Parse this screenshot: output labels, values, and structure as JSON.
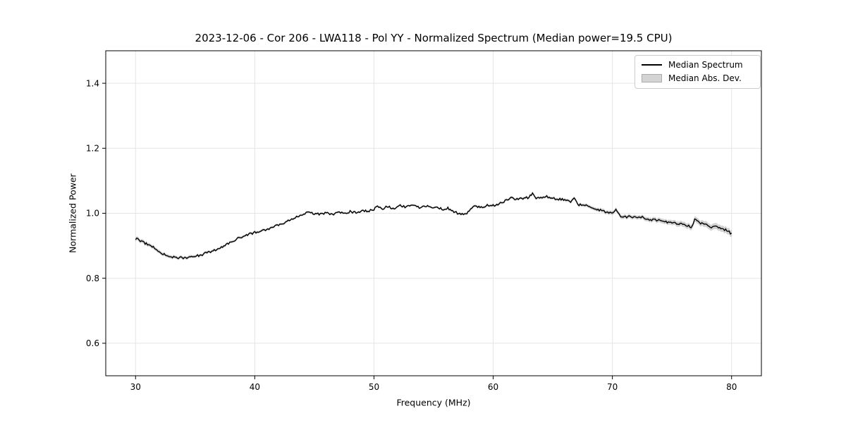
{
  "chart_data": {
    "type": "line",
    "title": "2023-12-06 - Cor 206 - LWA118 - Pol YY - Normalized Spectrum (Median power=19.5 CPU)",
    "xlabel": "Frequency (MHz)",
    "ylabel": "Normalized Power",
    "xlim": [
      27.5,
      82.5
    ],
    "ylim": [
      0.5,
      1.5
    ],
    "xticks": [
      30,
      40,
      50,
      60,
      70,
      80
    ],
    "xtick_labels": [
      "30",
      "40",
      "50",
      "60",
      "70",
      "80"
    ],
    "yticks": [
      0.6,
      0.8,
      1.0,
      1.2,
      1.4
    ],
    "ytick_labels": [
      "0.6",
      "0.8",
      "1.0",
      "1.2",
      "1.4"
    ],
    "grid": true,
    "grid_color": "#e5e5e5",
    "noise_amplitude": 0.0035,
    "legend": {
      "position": "upper right",
      "entries": [
        {
          "label": "Median Spectrum",
          "swatch": "line",
          "color": "#000000"
        },
        {
          "label": "Median Abs. Dev.",
          "swatch": "patch",
          "color": "#d4d4d4"
        }
      ]
    },
    "series": [
      {
        "name": "Median Spectrum",
        "type": "line",
        "color": "#000000",
        "points": [
          [
            30.0,
            0.922
          ],
          [
            30.3,
            0.917
          ],
          [
            30.6,
            0.912
          ],
          [
            31.0,
            0.904
          ],
          [
            31.4,
            0.898
          ],
          [
            31.8,
            0.888
          ],
          [
            32.2,
            0.876
          ],
          [
            32.6,
            0.87
          ],
          [
            33.0,
            0.867
          ],
          [
            33.5,
            0.864
          ],
          [
            34.0,
            0.863
          ],
          [
            34.5,
            0.865
          ],
          [
            35.0,
            0.868
          ],
          [
            35.5,
            0.872
          ],
          [
            36.0,
            0.878
          ],
          [
            36.5,
            0.884
          ],
          [
            37.0,
            0.892
          ],
          [
            37.5,
            0.902
          ],
          [
            38.0,
            0.912
          ],
          [
            38.5,
            0.921
          ],
          [
            39.0,
            0.928
          ],
          [
            39.5,
            0.935
          ],
          [
            40.0,
            0.941
          ],
          [
            40.5,
            0.946
          ],
          [
            41.0,
            0.951
          ],
          [
            41.5,
            0.957
          ],
          [
            42.0,
            0.964
          ],
          [
            42.5,
            0.972
          ],
          [
            43.0,
            0.98
          ],
          [
            43.5,
            0.988
          ],
          [
            44.0,
            0.996
          ],
          [
            44.6,
            1.004
          ],
          [
            45.0,
            0.998
          ],
          [
            45.5,
            0.997
          ],
          [
            46.0,
            1.001
          ],
          [
            46.5,
            0.997
          ],
          [
            47.0,
            1.003
          ],
          [
            47.5,
            0.999
          ],
          [
            48.0,
            1.005
          ],
          [
            48.5,
            1.002
          ],
          [
            49.0,
            1.008
          ],
          [
            49.5,
            1.006
          ],
          [
            50.0,
            1.012
          ],
          [
            50.3,
            1.024
          ],
          [
            50.7,
            1.014
          ],
          [
            51.2,
            1.022
          ],
          [
            51.7,
            1.013
          ],
          [
            52.1,
            1.025
          ],
          [
            52.6,
            1.019
          ],
          [
            53.2,
            1.027
          ],
          [
            53.8,
            1.017
          ],
          [
            54.2,
            1.025
          ],
          [
            54.8,
            1.016
          ],
          [
            55.3,
            1.021
          ],
          [
            55.7,
            1.012
          ],
          [
            56.2,
            1.016
          ],
          [
            56.6,
            1.005
          ],
          [
            57.1,
            1.0
          ],
          [
            57.8,
            0.998
          ],
          [
            58.1,
            1.014
          ],
          [
            58.5,
            1.022
          ],
          [
            59.0,
            1.017
          ],
          [
            59.5,
            1.026
          ],
          [
            60.0,
            1.024
          ],
          [
            60.5,
            1.03
          ],
          [
            61.0,
            1.038
          ],
          [
            61.5,
            1.046
          ],
          [
            62.0,
            1.043
          ],
          [
            62.5,
            1.046
          ],
          [
            63.0,
            1.049
          ],
          [
            63.3,
            1.06
          ],
          [
            63.6,
            1.045
          ],
          [
            64.0,
            1.049
          ],
          [
            64.5,
            1.052
          ],
          [
            65.0,
            1.047
          ],
          [
            65.5,
            1.043
          ],
          [
            66.0,
            1.041
          ],
          [
            66.5,
            1.037
          ],
          [
            66.8,
            1.047
          ],
          [
            67.1,
            1.024
          ],
          [
            67.5,
            1.028
          ],
          [
            68.0,
            1.022
          ],
          [
            68.5,
            1.016
          ],
          [
            69.0,
            1.009
          ],
          [
            69.5,
            1.004
          ],
          [
            70.0,
            1.0
          ],
          [
            70.3,
            1.014
          ],
          [
            70.6,
            0.993
          ],
          [
            71.0,
            0.988
          ],
          [
            71.5,
            0.99
          ],
          [
            72.0,
            0.985
          ],
          [
            72.5,
            0.987
          ],
          [
            73.0,
            0.981
          ],
          [
            73.5,
            0.979
          ],
          [
            74.0,
            0.977
          ],
          [
            74.5,
            0.974
          ],
          [
            75.0,
            0.971
          ],
          [
            75.5,
            0.968
          ],
          [
            76.0,
            0.965
          ],
          [
            76.4,
            0.96
          ],
          [
            76.7,
            0.958
          ],
          [
            76.9,
            0.984
          ],
          [
            77.3,
            0.971
          ],
          [
            77.7,
            0.965
          ],
          [
            78.0,
            0.962
          ],
          [
            78.4,
            0.956
          ],
          [
            78.7,
            0.959
          ],
          [
            79.0,
            0.953
          ],
          [
            79.4,
            0.95
          ],
          [
            79.7,
            0.947
          ],
          [
            80.0,
            0.936
          ]
        ]
      },
      {
        "name": "Median Abs. Dev.",
        "type": "band",
        "color": "#8c8c8c",
        "alpha": 0.4,
        "mad_points": [
          [
            30,
            0.006
          ],
          [
            33,
            0.005
          ],
          [
            36,
            0.004
          ],
          [
            40,
            0.004
          ],
          [
            45,
            0.003
          ],
          [
            50,
            0.003
          ],
          [
            55,
            0.003
          ],
          [
            60,
            0.004
          ],
          [
            64,
            0.004
          ],
          [
            68,
            0.005
          ],
          [
            70,
            0.006
          ],
          [
            72,
            0.006
          ],
          [
            74,
            0.007
          ],
          [
            76,
            0.008
          ],
          [
            78,
            0.009
          ],
          [
            80,
            0.01
          ]
        ]
      }
    ]
  }
}
